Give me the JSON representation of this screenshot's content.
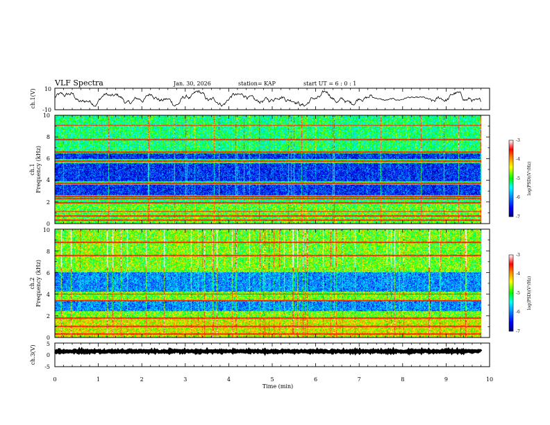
{
  "header": {
    "title": "VLF Spectra",
    "date": "Jan. 30, 2026",
    "station": "station= KAP",
    "start_ut": "start UT =  6 : 0 : 1"
  },
  "colorbar": {
    "ticks": [
      "-3",
      "-4",
      "-5",
      "-6",
      "-7"
    ],
    "label": "log(PSD)(V²/Hz)",
    "range": [
      -7,
      -3
    ],
    "colors": [
      "#000080",
      "#0000ff",
      "#00a0ff",
      "#00ffff",
      "#00ff00",
      "#ffff00",
      "#ff8000",
      "#ff0000",
      "#ffffff"
    ]
  },
  "chart_data": [
    {
      "type": "line",
      "name": "ch1-waveform",
      "ylabel": "ch.1(V)",
      "yticks": [
        "10",
        "-10"
      ],
      "ylim": [
        -10,
        10
      ],
      "xlim": [
        0,
        9.8
      ],
      "description_values": {
        "mean": 0,
        "amplitude_approx": 7
      }
    },
    {
      "type": "heatmap",
      "name": "ch1-spectrogram",
      "ylabel_line1": "ch.1",
      "ylabel_line2": "Frequency (kHz)",
      "yticks": [
        "0",
        "2",
        "4",
        "6",
        "8",
        "10"
      ],
      "ylim": [
        0,
        10
      ],
      "xlim": [
        0,
        9.8
      ],
      "zlim": [
        -7,
        -3
      ],
      "blue_bands_khz": [
        [
          2.6,
          3.6
        ],
        [
          3.9,
          5.6
        ],
        [
          6.0,
          6.5
        ]
      ],
      "lines_khz": [
        0.3,
        0.7,
        1.1,
        1.9,
        2.3,
        2.5,
        3.7,
        5.8,
        6.6,
        7.8,
        9.1
      ],
      "background_level": -5.2
    },
    {
      "type": "heatmap",
      "name": "ch2-spectrogram",
      "ylabel_line1": "ch.2",
      "ylabel_line2": "Frequency (kHz)",
      "yticks": [
        "0",
        "2",
        "4",
        "6",
        "8",
        "10"
      ],
      "ylim": [
        0,
        10
      ],
      "xlim": [
        0,
        9.8
      ],
      "zlim": [
        -7,
        -3
      ],
      "blue_bands_khz": [
        [
          2.4,
          3.3
        ],
        [
          4.2,
          6.0
        ]
      ],
      "lines_khz": [
        0.3,
        1.0,
        1.8,
        3.4,
        4.0,
        7.6,
        8.8
      ],
      "background_level": -4.8
    },
    {
      "type": "line",
      "name": "ch3-waveform",
      "ylabel": "ch.3(V)",
      "yticks": [
        "5",
        "0",
        "-5"
      ],
      "ylim": [
        -5,
        5
      ],
      "xlim": [
        0,
        9.8
      ],
      "description_values": {
        "mean": 1.5,
        "amplitude_approx": 0.3
      }
    }
  ],
  "xaxis": {
    "label": "Time (min)",
    "ticks": [
      "0",
      "1",
      "2",
      "3",
      "4",
      "5",
      "6",
      "7",
      "8",
      "9",
      "10"
    ],
    "range": [
      0,
      10
    ]
  }
}
